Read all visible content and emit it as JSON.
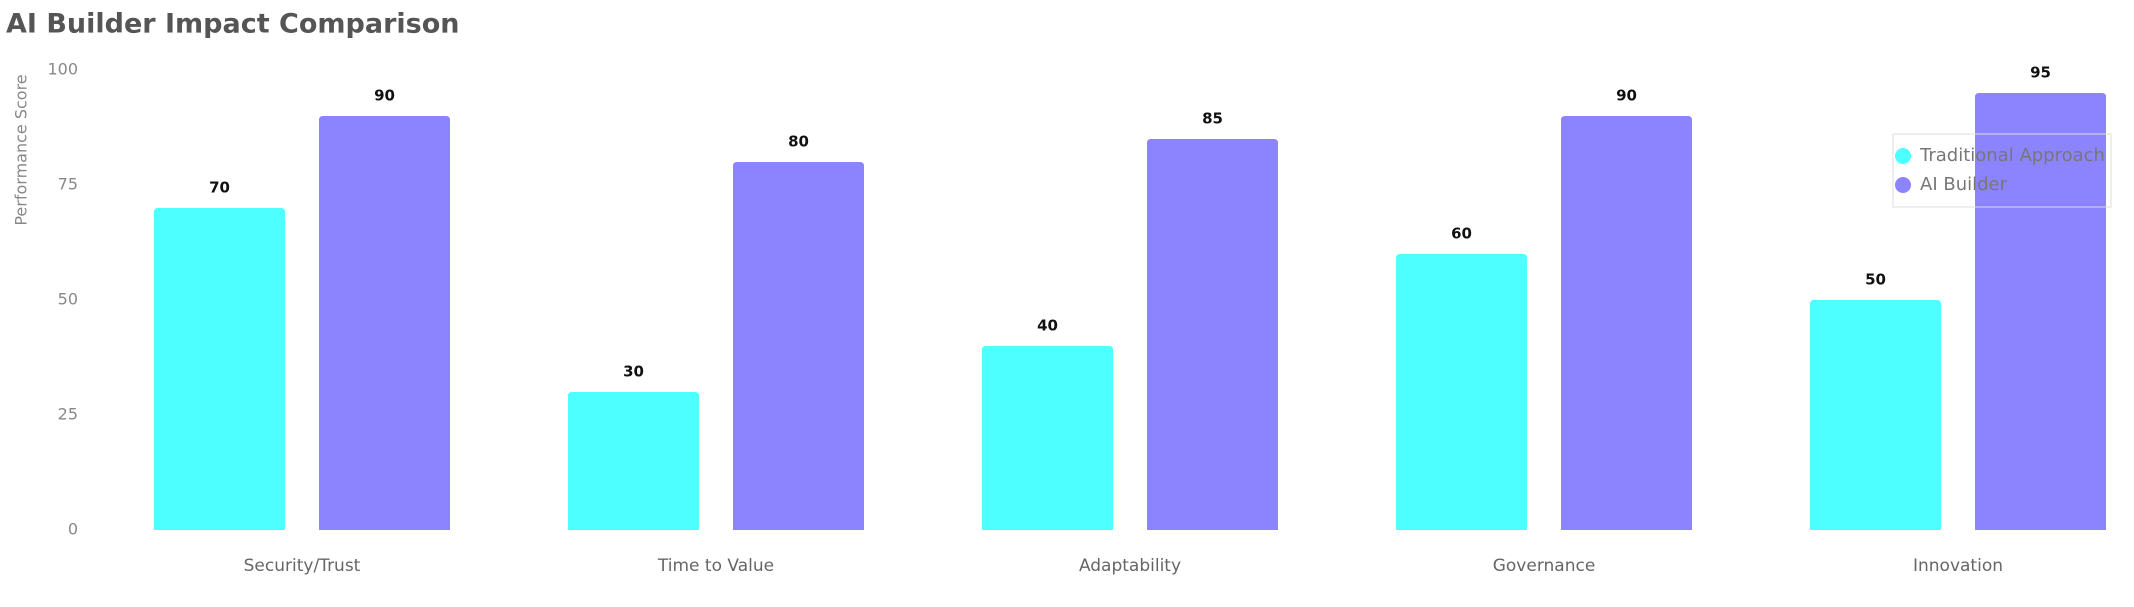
{
  "chart_data": {
    "type": "bar",
    "title": "AI Builder Impact Comparison",
    "y_label": "Performance Score",
    "categories": [
      "Security/Trust",
      "Time to Value",
      "Adaptability",
      "Governance",
      "Innovation"
    ],
    "series": [
      {
        "name": "Traditional Approach",
        "color": "#4dffff",
        "values": [
          70,
          30,
          40,
          60,
          50
        ]
      },
      {
        "name": "AI Builder",
        "color": "#8c83ff",
        "values": [
          90,
          80,
          85,
          90,
          95
        ]
      }
    ],
    "ylim": [
      0,
      100
    ],
    "yticks": [
      0,
      25,
      50,
      75,
      100
    ],
    "legend": "top-right"
  }
}
